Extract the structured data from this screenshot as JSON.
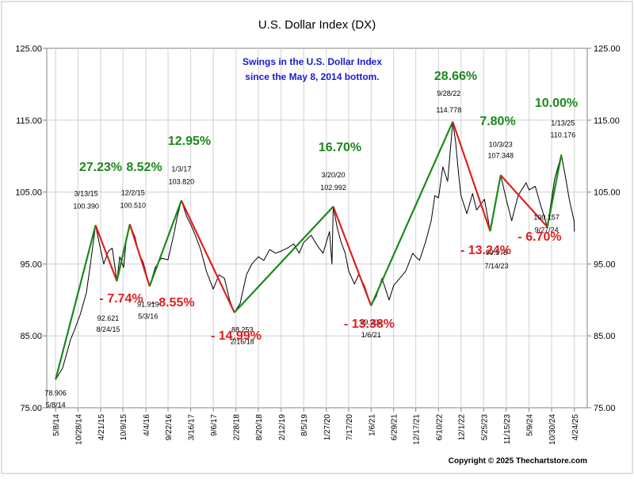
{
  "chart_data": {
    "type": "line",
    "title": "U.S. Dollar Index (DX)",
    "subtitle_lines": [
      "Swings in the U.S. Dollar Index",
      "since the May 8, 2014 bottom."
    ],
    "copyright": "Copyright © 2025 Thechartstore.com",
    "ylim": [
      75,
      125
    ],
    "y_ticks": [
      "75.00",
      "85.00",
      "95.00",
      "105.00",
      "115.00",
      "125.00"
    ],
    "x_range": [
      "2014-03-01",
      "2025-08-01"
    ],
    "x_ticks": [
      {
        "label": "5/8/14",
        "date": "2014-05-08"
      },
      {
        "label": "10/28/14",
        "date": "2014-10-28"
      },
      {
        "label": "4/21/15",
        "date": "2015-04-21"
      },
      {
        "label": "10/9/15",
        "date": "2015-10-09"
      },
      {
        "label": "4/4/16",
        "date": "2016-04-04"
      },
      {
        "label": "9/22/16",
        "date": "2016-09-22"
      },
      {
        "label": "3/16/17",
        "date": "2017-03-16"
      },
      {
        "label": "9/6/17",
        "date": "2017-09-06"
      },
      {
        "label": "2/28/18",
        "date": "2018-02-28"
      },
      {
        "label": "8/20/18",
        "date": "2018-08-20"
      },
      {
        "label": "2/12/19",
        "date": "2019-02-12"
      },
      {
        "label": "8/5/19",
        "date": "2019-08-05"
      },
      {
        "label": "1/27/20",
        "date": "2020-01-27"
      },
      {
        "label": "7/17/20",
        "date": "2020-07-17"
      },
      {
        "label": "1/6/21",
        "date": "2021-01-06"
      },
      {
        "label": "6/29/21",
        "date": "2021-06-29"
      },
      {
        "label": "12/17/21",
        "date": "2021-12-17"
      },
      {
        "label": "6/10/22",
        "date": "2022-06-10"
      },
      {
        "label": "12/1/22",
        "date": "2022-12-01"
      },
      {
        "label": "5/25/23",
        "date": "2023-05-25"
      },
      {
        "label": "11/15/23",
        "date": "2023-11-15"
      },
      {
        "label": "5/9/24",
        "date": "2024-05-09"
      },
      {
        "label": "10/30/24",
        "date": "2024-10-30"
      },
      {
        "label": "4/24/25",
        "date": "2025-04-24"
      }
    ],
    "series": [
      {
        "x": [
          "2014-05-08",
          "2014-07-01",
          "2014-09-01",
          "2014-10-01",
          "2014-11-15",
          "2015-01-01",
          "2015-02-01",
          "2015-03-13",
          "2015-04-15",
          "2015-05-15",
          "2015-06-20",
          "2015-07-20",
          "2015-08-24",
          "2015-09-15",
          "2015-10-15",
          "2015-11-05",
          "2015-12-02",
          "2016-01-10",
          "2016-02-10",
          "2016-03-15",
          "2016-05-03",
          "2016-06-15",
          "2016-08-01",
          "2016-09-22",
          "2016-11-10",
          "2016-12-01",
          "2017-01-03",
          "2017-02-15",
          "2017-03-16",
          "2017-04-20",
          "2017-06-01",
          "2017-07-15",
          "2017-09-06",
          "2017-10-20",
          "2017-12-01",
          "2018-01-10",
          "2018-02-16",
          "2018-04-01",
          "2018-05-20",
          "2018-07-01",
          "2018-08-20",
          "2018-10-01",
          "2018-11-15",
          "2019-01-01",
          "2019-02-12",
          "2019-04-01",
          "2019-05-20",
          "2019-07-01",
          "2019-08-05",
          "2019-10-01",
          "2019-11-20",
          "2020-01-01",
          "2020-02-20",
          "2020-03-10",
          "2020-03-20",
          "2020-04-20",
          "2020-05-20",
          "2020-06-20",
          "2020-07-17",
          "2020-08-31",
          "2020-10-01",
          "2020-11-15",
          "2021-01-06",
          "2021-02-15",
          "2021-03-31",
          "2021-05-25",
          "2021-06-29",
          "2021-08-15",
          "2021-09-30",
          "2021-11-24",
          "2021-12-17",
          "2022-01-15",
          "2022-03-01",
          "2022-04-15",
          "2022-05-13",
          "2022-06-10",
          "2022-07-14",
          "2022-08-20",
          "2022-09-28",
          "2022-10-20",
          "2022-11-15",
          "2022-12-01",
          "2023-01-15",
          "2023-02-28",
          "2023-03-31",
          "2023-05-31",
          "2023-07-14",
          "2023-08-20",
          "2023-10-03",
          "2023-11-15",
          "2023-12-27",
          "2024-02-14",
          "2024-04-16",
          "2024-05-09",
          "2024-06-26",
          "2024-08-01",
          "2024-09-27",
          "2024-10-30",
          "2024-11-22",
          "2025-01-13",
          "2025-02-15",
          "2025-03-15",
          "2025-04-21",
          "2025-04-24"
        ],
        "y": [
          78.906,
          80.5,
          84.5,
          85.8,
          88.0,
          91.0,
          95.0,
          100.39,
          97.5,
          95.0,
          96.8,
          97.2,
          92.62,
          96.0,
          94.5,
          98.5,
          100.51,
          98.8,
          96.5,
          95.2,
          91.92,
          94.5,
          95.8,
          95.6,
          99.5,
          101.5,
          103.82,
          101.5,
          100.5,
          99.0,
          97.0,
          94.0,
          91.5,
          93.5,
          93.0,
          90.0,
          88.25,
          89.5,
          93.5,
          95.0,
          96.0,
          95.5,
          97.0,
          96.5,
          96.8,
          97.2,
          97.8,
          96.5,
          98.0,
          99.0,
          97.5,
          96.5,
          99.5,
          95.0,
          102.99,
          100.0,
          98.0,
          96.5,
          94.0,
          92.2,
          93.5,
          92.0,
          89.21,
          90.5,
          93.0,
          90.0,
          92.0,
          93.0,
          94.0,
          96.5,
          96.0,
          95.5,
          98.0,
          101.0,
          104.5,
          104.2,
          108.5,
          106.5,
          114.78,
          112.0,
          107.0,
          104.5,
          102.0,
          104.8,
          102.5,
          104.0,
          99.58,
          103.0,
          107.35,
          104.0,
          101.0,
          104.5,
          106.3,
          105.3,
          105.8,
          103.5,
          100.16,
          104.0,
          106.8,
          110.18,
          107.0,
          104.0,
          101.0,
          99.5
        ]
      }
    ],
    "swing_points": [
      {
        "date": "2014-05-08",
        "value": 78.906,
        "date_label": "5/8/14",
        "value_label": "78.906",
        "kind": "low"
      },
      {
        "date": "2015-03-13",
        "value": 100.39,
        "date_label": "3/13/15",
        "value_label": "100.390",
        "kind": "high"
      },
      {
        "date": "2015-08-24",
        "value": 92.621,
        "date_label": "8/24/15",
        "value_label": "92.621",
        "kind": "low"
      },
      {
        "date": "2015-12-02",
        "value": 100.51,
        "date_label": "12/2/15",
        "value_label": "100.510",
        "kind": "high"
      },
      {
        "date": "2016-05-03",
        "value": 91.919,
        "date_label": "5/3/16",
        "value_label": "91.919",
        "kind": "low"
      },
      {
        "date": "2017-01-03",
        "value": 103.82,
        "date_label": "1/3/17",
        "value_label": "103.820",
        "kind": "high"
      },
      {
        "date": "2018-02-16",
        "value": 88.253,
        "date_label": "2/16/18",
        "value_label": "88.253",
        "kind": "low"
      },
      {
        "date": "2020-03-20",
        "value": 102.992,
        "date_label": "3/20/20",
        "value_label": "102.992",
        "kind": "high"
      },
      {
        "date": "2021-01-06",
        "value": 89.209,
        "date_label": "1/6/21",
        "value_label": "89.209",
        "kind": "low"
      },
      {
        "date": "2022-09-28",
        "value": 114.778,
        "date_label": "9/28/22",
        "value_label": "114.778",
        "kind": "high"
      },
      {
        "date": "2023-07-14",
        "value": 99.578,
        "date_label": "7/14/23",
        "value_label": "99.578",
        "kind": "low"
      },
      {
        "date": "2023-10-03",
        "value": 107.348,
        "date_label": "10/3/23",
        "value_label": "107.348",
        "kind": "high"
      },
      {
        "date": "2024-09-27",
        "value": 100.157,
        "date_label": "9/27/24",
        "value_label": "100.157",
        "kind": "low"
      },
      {
        "date": "2025-01-13",
        "value": 110.176,
        "date_label": "1/13/25",
        "value_label": "110.176",
        "kind": "high"
      }
    ],
    "swing_percent_labels": [
      {
        "text": "27.23%",
        "color": "#1a8a1a"
      },
      {
        "text": "8.52%",
        "color": "#1a8a1a"
      },
      {
        "text": "12.95%",
        "color": "#1a8a1a"
      },
      {
        "text": "16.70%",
        "color": "#1a8a1a"
      },
      {
        "text": "28.66%",
        "color": "#1a8a1a"
      },
      {
        "text": "7.80%",
        "color": "#1a8a1a"
      },
      {
        "text": "10.00%",
        "color": "#1a8a1a"
      },
      {
        "text": "- 7.74%",
        "color": "#e02020"
      },
      {
        "text": "- 8.55%",
        "color": "#e02020"
      },
      {
        "text": "- 14.99%",
        "color": "#e02020"
      },
      {
        "text": "- 13.38%",
        "color": "#e02020"
      },
      {
        "text": "- 13.24%",
        "color": "#e02020"
      },
      {
        "text": "- 6.70%",
        "color": "#e02020"
      }
    ],
    "colors": {
      "up_swing": "#1a8a1a",
      "down_swing": "#e02020",
      "price": "#000000",
      "subtitle": "#1a1ad0",
      "grid": "#d0d0d0",
      "border": "#808080"
    },
    "grid": true
  }
}
